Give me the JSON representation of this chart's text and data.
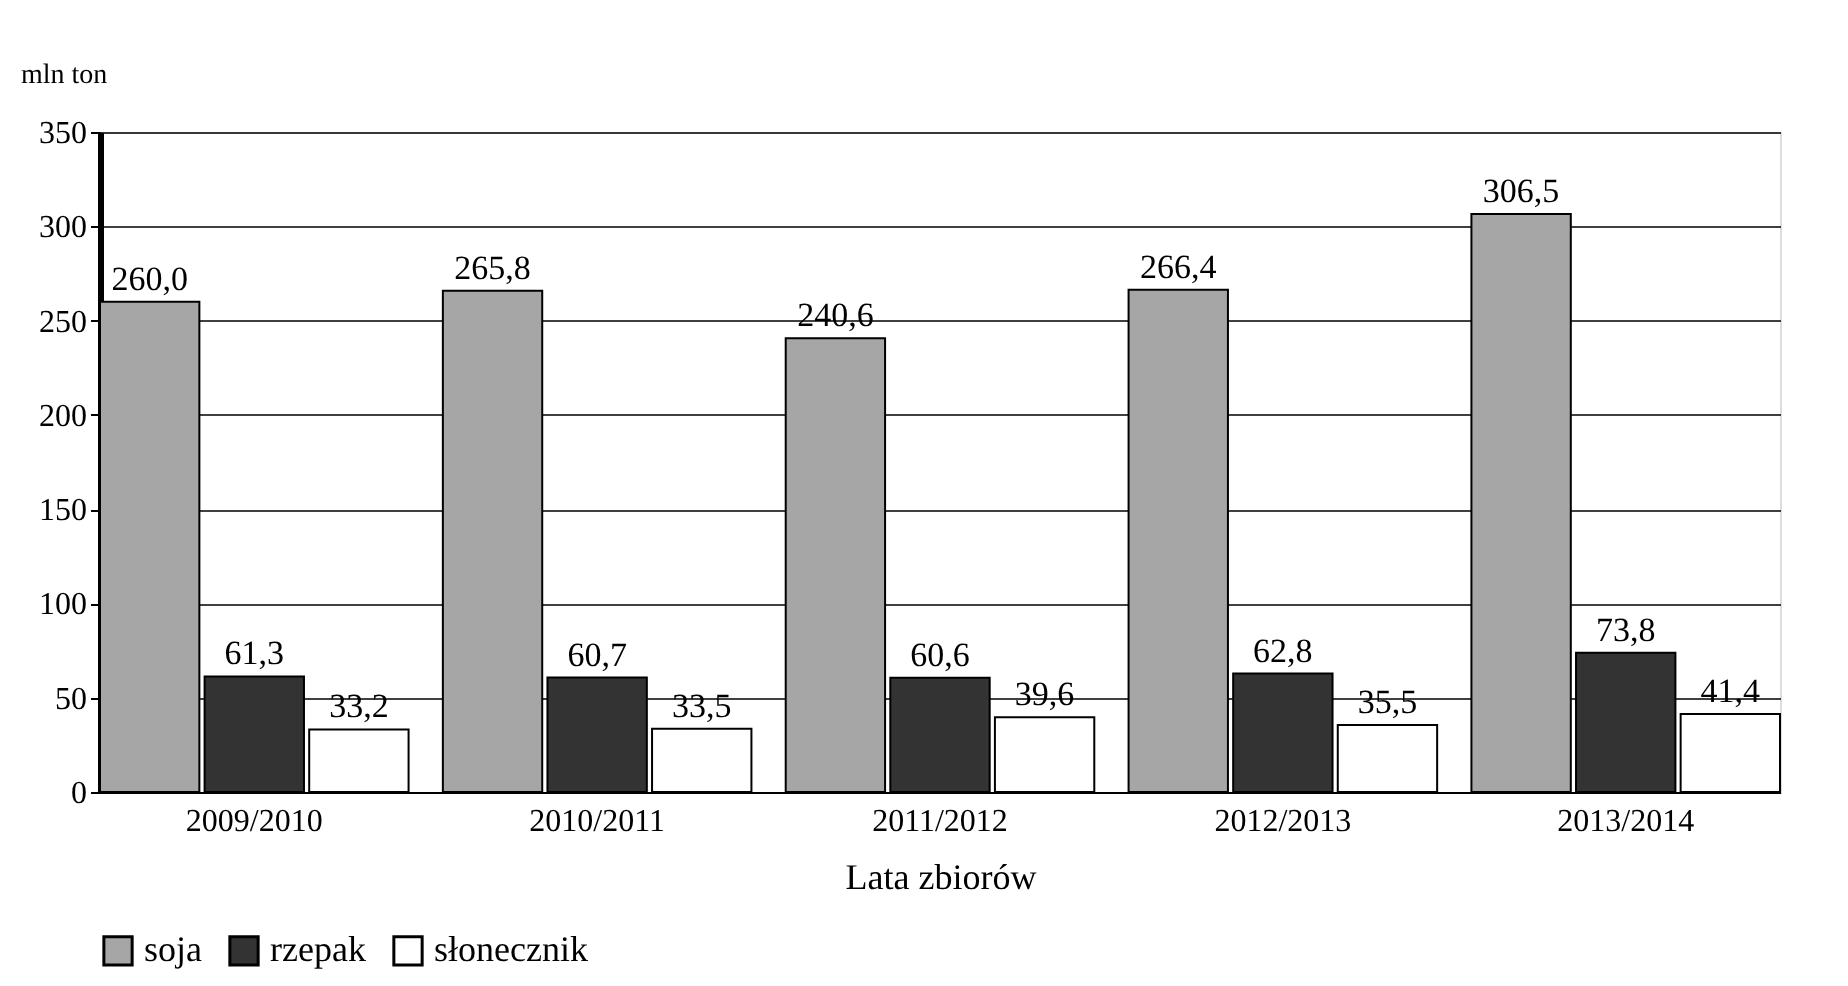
{
  "chart_data": {
    "type": "bar",
    "xlabel": "Lata zbiorów",
    "ylabel": "mln ton",
    "categories": [
      "2009/2010",
      "2010/2011",
      "2011/2012",
      "2012/2013",
      "2013/2014"
    ],
    "series": [
      {
        "name": "soja",
        "color": "#a6a6a6",
        "values": [
          260.0,
          265.8,
          240.6,
          266.4,
          306.5
        ],
        "value_labels": [
          "260,0",
          "265,8",
          "240,6",
          "266,4",
          "306,5"
        ]
      },
      {
        "name": "rzepak",
        "color": "#333333",
        "values": [
          61.3,
          60.7,
          60.6,
          62.8,
          73.8
        ],
        "value_labels": [
          "61,3",
          "60,7",
          "60,6",
          "62,8",
          "73,8"
        ]
      },
      {
        "name": "słonecznik",
        "color": "#ffffff",
        "values": [
          33.2,
          33.5,
          39.6,
          35.5,
          41.4
        ],
        "value_labels": [
          "33,2",
          "33,5",
          "39,6",
          "35,5",
          "41,4"
        ]
      }
    ],
    "ylim": [
      0,
      350
    ],
    "yticks": [
      0,
      50,
      100,
      150,
      200,
      250,
      300,
      350
    ],
    "grid": "y",
    "legend": "bottom"
  }
}
